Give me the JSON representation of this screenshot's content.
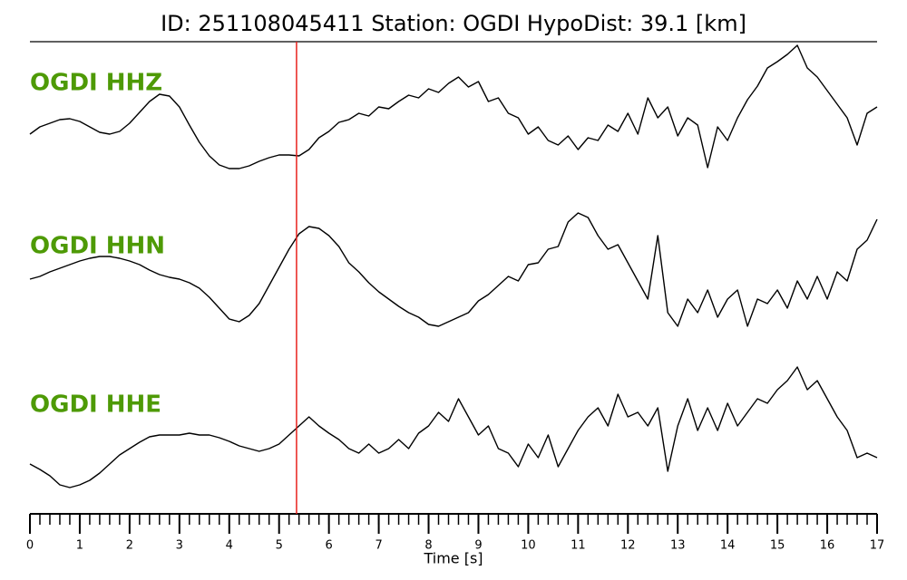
{
  "chart_data": {
    "type": "line",
    "title": "ID: 251108045411   Station: OGDI   HypoDist:    39.1 [km]",
    "xlabel": "Time [s]",
    "xlim": [
      0,
      17
    ],
    "xticks": [
      0,
      1,
      2,
      3,
      4,
      5,
      6,
      7,
      8,
      9,
      10,
      11,
      12,
      13,
      14,
      15,
      16,
      17
    ],
    "minor_tick_step": 0.2,
    "ylim": [
      -100,
      100
    ],
    "pick": 5.35,
    "pick_color": "#e8211d",
    "label_color": "#4e9a06",
    "x": [
      0,
      0.2,
      0.4,
      0.6,
      0.8,
      1,
      1.2,
      1.4,
      1.6,
      1.8,
      2,
      2.2,
      2.4,
      2.6,
      2.8,
      3,
      3.2,
      3.4,
      3.6,
      3.8,
      4,
      4.2,
      4.4,
      4.6,
      4.8,
      5,
      5.2,
      5.4,
      5.6,
      5.8,
      6,
      6.2,
      6.4,
      6.6,
      6.8,
      7,
      7.2,
      7.4,
      7.6,
      7.8,
      8,
      8.2,
      8.4,
      8.6,
      8.8,
      9,
      9.2,
      9.4,
      9.6,
      9.8,
      10,
      10.2,
      10.4,
      10.6,
      10.8,
      11,
      11.2,
      11.4,
      11.6,
      11.8,
      12,
      12.2,
      12.4,
      12.6,
      12.8,
      13,
      13.2,
      13.4,
      13.6,
      13.8,
      14,
      14.2,
      14.4,
      14.6,
      14.8,
      15,
      15.2,
      15.4,
      15.6,
      15.8,
      16,
      16.2,
      16.4,
      16.6,
      16.8,
      17
    ],
    "series": [
      {
        "name": "OGDI HHZ",
        "color": "#000000",
        "values": [
          -28,
          -20,
          -16,
          -12,
          -11,
          -14,
          -20,
          -26,
          -28,
          -25,
          -16,
          -4,
          8,
          16,
          14,
          2,
          -18,
          -37,
          -52,
          -62,
          -66,
          -66,
          -63,
          -58,
          -54,
          -51,
          -51,
          -52,
          -45,
          -32,
          -25,
          -15,
          -12,
          -5,
          -8,
          2,
          0,
          8,
          15,
          12,
          22,
          18,
          28,
          35,
          24,
          30,
          8,
          12,
          -5,
          -10,
          -28,
          -20,
          -35,
          -40,
          -30,
          -45,
          -32,
          -35,
          -18,
          -25,
          -5,
          -28,
          12,
          -10,
          2,
          -30,
          -10,
          -18,
          -65,
          -20,
          -35,
          -10,
          10,
          25,
          45,
          52,
          60,
          70,
          45,
          35,
          20,
          5,
          -10,
          -40,
          -5,
          2
        ]
      },
      {
        "name": "OGDI HHN",
        "color": "#000000",
        "values": [
          -8,
          -5,
          0,
          4,
          8,
          12,
          15,
          17,
          17,
          15,
          12,
          8,
          2,
          -3,
          -6,
          -8,
          -12,
          -18,
          -28,
          -40,
          -52,
          -55,
          -48,
          -35,
          -15,
          5,
          25,
          42,
          50,
          48,
          40,
          28,
          10,
          0,
          -12,
          -22,
          -30,
          -38,
          -45,
          -50,
          -58,
          -60,
          -55,
          -50,
          -45,
          -32,
          -25,
          -15,
          -5,
          -10,
          8,
          10,
          25,
          28,
          55,
          65,
          60,
          40,
          25,
          30,
          10,
          -10,
          -30,
          40,
          -45,
          -60,
          -30,
          -45,
          -20,
          -50,
          -30,
          -20,
          -60,
          -30,
          -35,
          -20,
          -40,
          -10,
          -30,
          -5,
          -30,
          0,
          -10,
          25,
          35,
          58
        ]
      },
      {
        "name": "OGDI HHE",
        "color": "#000000",
        "values": [
          -37,
          -43,
          -50,
          -60,
          -63,
          -60,
          -55,
          -47,
          -37,
          -27,
          -20,
          -13,
          -7,
          -5,
          -5,
          -5,
          -3,
          -5,
          -5,
          -8,
          -12,
          -17,
          -20,
          -23,
          -20,
          -15,
          -5,
          5,
          15,
          5,
          -3,
          -10,
          -20,
          -25,
          -15,
          -25,
          -20,
          -10,
          -20,
          -3,
          5,
          20,
          10,
          35,
          15,
          -5,
          5,
          -20,
          -25,
          -40,
          -15,
          -30,
          -5,
          -40,
          -20,
          0,
          15,
          25,
          5,
          40,
          15,
          20,
          5,
          25,
          -45,
          5,
          35,
          0,
          25,
          0,
          30,
          5,
          20,
          35,
          30,
          45,
          55,
          70,
          45,
          55,
          35,
          15,
          0,
          -30,
          -25,
          -30
        ]
      }
    ]
  }
}
